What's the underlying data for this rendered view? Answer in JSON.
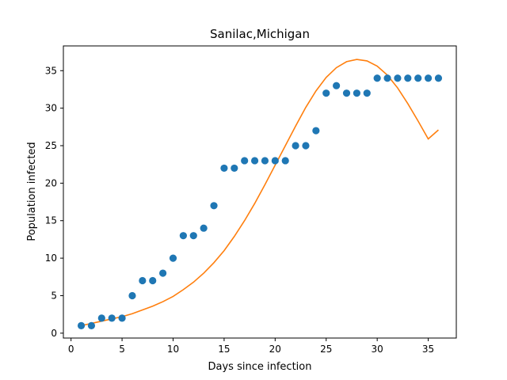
{
  "chart_data": {
    "type": "scatter",
    "title": "Sanilac,Michigan",
    "xlabel": "Days since infection",
    "ylabel": "Population infected",
    "xlim": [
      -0.75,
      37.75
    ],
    "ylim": [
      -0.65,
      38.3
    ],
    "xticks": [
      0,
      5,
      10,
      15,
      20,
      25,
      30,
      35
    ],
    "yticks": [
      0,
      5,
      10,
      15,
      20,
      25,
      30,
      35
    ],
    "grid": false,
    "legend": "none",
    "series": [
      {
        "kind": "scatter",
        "color": "#1f77b4",
        "x": [
          1,
          2,
          3,
          4,
          5,
          6,
          7,
          8,
          9,
          10,
          11,
          12,
          13,
          14,
          15,
          16,
          17,
          18,
          19,
          20,
          21,
          22,
          23,
          24,
          25,
          26,
          27,
          28,
          29,
          30,
          31,
          32,
          33,
          34,
          35,
          36
        ],
        "y": [
          1,
          1,
          2,
          2,
          2,
          5,
          7,
          7,
          8,
          10,
          13,
          13,
          14,
          17,
          22,
          22,
          23,
          23,
          23,
          23,
          23,
          25,
          25,
          27,
          32,
          33,
          32,
          32,
          32,
          34,
          34,
          34,
          34,
          34,
          34,
          34
        ]
      },
      {
        "kind": "line",
        "color": "#ff7f0e",
        "x": [
          1,
          2,
          3,
          4,
          5,
          6,
          7,
          8,
          9,
          10,
          11,
          12,
          13,
          14,
          15,
          16,
          17,
          18,
          19,
          20,
          21,
          22,
          23,
          24,
          25,
          26,
          27,
          28,
          29,
          30,
          31,
          32,
          33,
          34,
          35,
          36
        ],
        "y": [
          1.0,
          1.3,
          1.6,
          1.9,
          2.2,
          2.6,
          3.1,
          3.6,
          4.2,
          4.9,
          5.8,
          6.8,
          8.0,
          9.4,
          11.0,
          12.9,
          15.0,
          17.3,
          19.8,
          22.4,
          25.0,
          27.6,
          30.1,
          32.3,
          34.1,
          35.4,
          36.2,
          36.5,
          36.3,
          35.6,
          34.4,
          32.7,
          30.6,
          28.3,
          25.9,
          27.1
        ]
      }
    ]
  }
}
